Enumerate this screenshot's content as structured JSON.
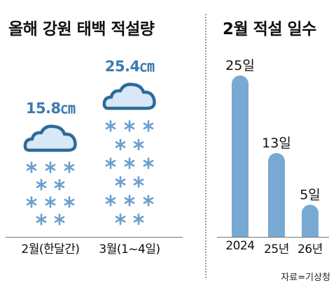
{
  "left_panel": {
    "title": "올해 강원 태백 적설량"
  },
  "right_panel": {
    "title": "2월 적설 일수"
  },
  "source": "자료=기상청",
  "colors": {
    "bar": "#78a9d2",
    "snow_value": "#3d7bb0",
    "cloud_fill": "#d8e8f6",
    "cloud_stroke": "#2e6b99",
    "snowflake": "#6a9fd0"
  },
  "icons": [
    "cloud-icon",
    "snowflake-icon"
  ],
  "chart_data": [
    {
      "type": "pictogram",
      "title": "올해 강원 태백 적설량",
      "categories": [
        "2월(한달간)",
        "3월(1~4일)"
      ],
      "values": [
        15.8,
        25.4
      ],
      "value_labels": [
        "15.8㎝",
        "25.4㎝"
      ],
      "unit": "㎝"
    },
    {
      "type": "bar",
      "title": "2월 적설 일수",
      "categories": [
        "2024",
        "25년",
        "26년"
      ],
      "values": [
        25,
        13,
        5
      ],
      "value_labels": [
        "25일",
        "13일",
        "5일"
      ],
      "unit": "일",
      "ylim": [
        0,
        25
      ]
    }
  ]
}
